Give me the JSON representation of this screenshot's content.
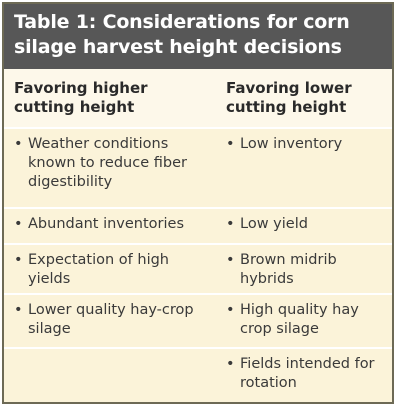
{
  "header": {
    "title": "Table 1: Considerations for corn silage harvest height decisions"
  },
  "table": {
    "columns": [
      {
        "heading": "Favoring higher cutting height",
        "items": [
          "Weather conditions known to reduce fiber digestibility",
          "Abundant inventories",
          "Expectation of high yields",
          "Lower quality hay-crop silage"
        ]
      },
      {
        "heading": "Favoring lower cutting height",
        "items": [
          "Low inventory",
          "Low yield",
          "Brown midrib hybrids",
          "High quality hay crop silage",
          "Fields intended for rotation"
        ]
      }
    ]
  }
}
